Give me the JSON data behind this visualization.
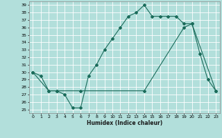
{
  "xlabel": "Humidex (Indice chaleur)",
  "bg_color": "#b2dfdb",
  "grid_color": "#80cbc4",
  "line_color": "#1a6b5a",
  "xlim": [
    -0.5,
    23.5
  ],
  "ylim": [
    24.5,
    39.5
  ],
  "xticks": [
    0,
    1,
    2,
    3,
    4,
    5,
    6,
    7,
    8,
    9,
    10,
    11,
    12,
    13,
    14,
    15,
    16,
    17,
    18,
    19,
    20,
    21,
    22,
    23
  ],
  "yticks": [
    25,
    26,
    27,
    28,
    29,
    30,
    31,
    32,
    33,
    34,
    35,
    36,
    37,
    38,
    39
  ],
  "line1_x": [
    0,
    1,
    2,
    3,
    4,
    5,
    6,
    7,
    8,
    9,
    10,
    11,
    12,
    13,
    14,
    15,
    16,
    17,
    18,
    19,
    20,
    21,
    22,
    23
  ],
  "line1_y": [
    30,
    29.5,
    27.5,
    27.5,
    27.0,
    25.2,
    25.2,
    29.5,
    31.0,
    33.0,
    34.5,
    36.0,
    37.5,
    38.0,
    39.0,
    37.5,
    37.5,
    37.5,
    37.5,
    36.5,
    36.5,
    32.5,
    29.0,
    27.5
  ],
  "line2_x": [
    0,
    2,
    3,
    6,
    14,
    19,
    20,
    23
  ],
  "line2_y": [
    30,
    27.5,
    27.5,
    27.5,
    27.5,
    36.0,
    36.5,
    27.5
  ]
}
